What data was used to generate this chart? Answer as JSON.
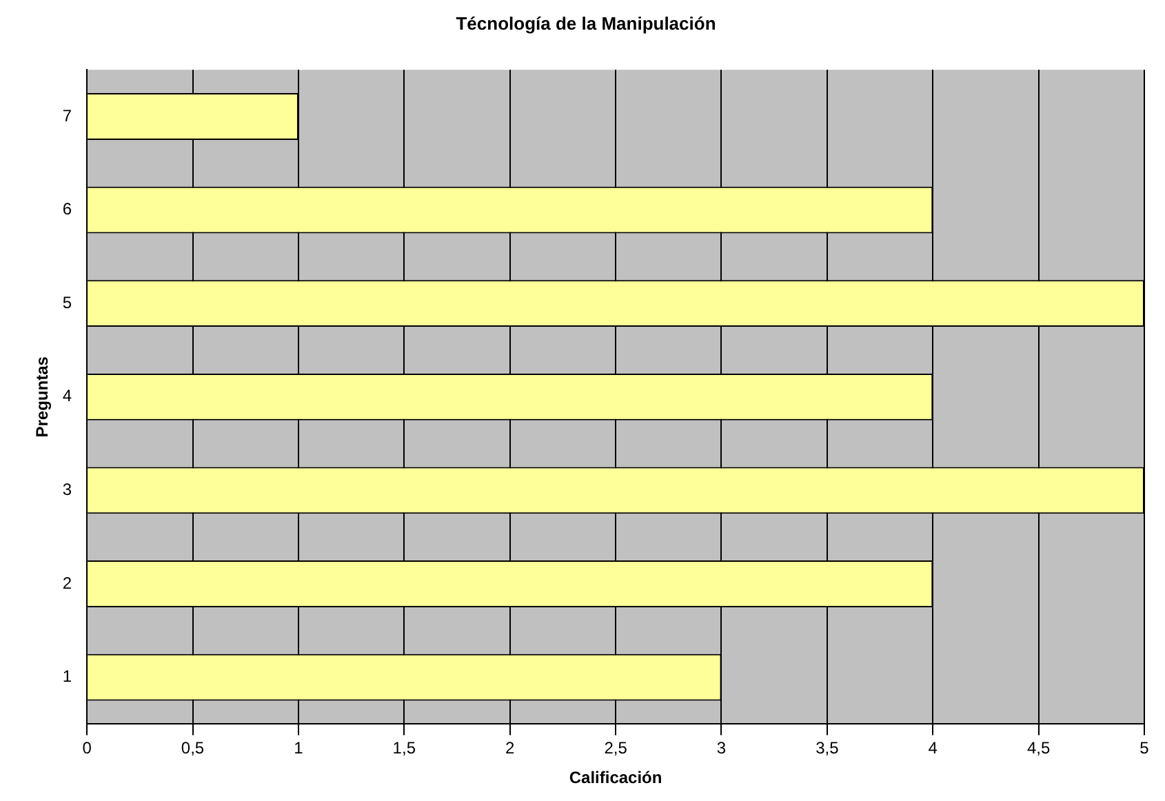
{
  "chart_data": {
    "type": "bar",
    "orientation": "horizontal",
    "title": "Técnología de la Manipulación",
    "xlabel": "Calificación",
    "ylabel": "Preguntas",
    "categories": [
      "7",
      "6",
      "5",
      "4",
      "3",
      "2",
      "1"
    ],
    "values": [
      1,
      4,
      5,
      4,
      5,
      4,
      3
    ],
    "color": "#ffff99",
    "xlim": [
      0,
      5
    ],
    "xticks": [
      0,
      {
        "value": 0.5,
        "label": "0,5"
      },
      1,
      {
        "value": 1.5,
        "label": "1,5"
      },
      2,
      {
        "value": 2.5,
        "label": "2,5"
      },
      3,
      {
        "value": 3.5,
        "label": "3,5"
      },
      4,
      {
        "value": 4.5,
        "label": "4,5"
      },
      5
    ],
    "grid": "x",
    "legend": false
  }
}
